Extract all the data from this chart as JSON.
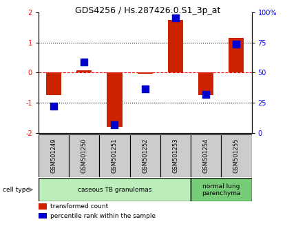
{
  "title": "GDS4256 / Hs.287426.0.S1_3p_at",
  "samples": [
    "GSM501249",
    "GSM501250",
    "GSM501251",
    "GSM501252",
    "GSM501253",
    "GSM501254",
    "GSM501255"
  ],
  "transformed_counts": [
    -0.75,
    0.07,
    -1.8,
    -0.03,
    1.75,
    -0.75,
    1.15
  ],
  "percentile_ranks": [
    -1.1,
    0.35,
    -1.72,
    -0.55,
    1.82,
    -0.72,
    0.95
  ],
  "ylim": [
    -2,
    2
  ],
  "yticks_left": [
    -2,
    -1,
    0,
    1,
    2
  ],
  "yticks_right": [
    0,
    25,
    50,
    75,
    100
  ],
  "yticks_right_positions": [
    -2,
    -1,
    0,
    1,
    2
  ],
  "hlines_dotted": [
    -1,
    1
  ],
  "hline_dashed": 0,
  "groups": [
    {
      "label": "caseous TB granulomas",
      "samples_idx": [
        0,
        1,
        2,
        3,
        4
      ],
      "color": "#bbeebb"
    },
    {
      "label": "normal lung\nparenchyma",
      "samples_idx": [
        5,
        6
      ],
      "color": "#77cc77"
    }
  ],
  "bar_color": "#cc2200",
  "dot_color": "#0000cc",
  "bar_width": 0.5,
  "dot_size": 50,
  "legend_items": [
    {
      "color": "#cc2200",
      "label": "transformed count"
    },
    {
      "color": "#0000cc",
      "label": "percentile rank within the sample"
    }
  ],
  "cell_type_label": "cell type",
  "sample_box_color": "#cccccc",
  "plot_bg": "#ffffff"
}
